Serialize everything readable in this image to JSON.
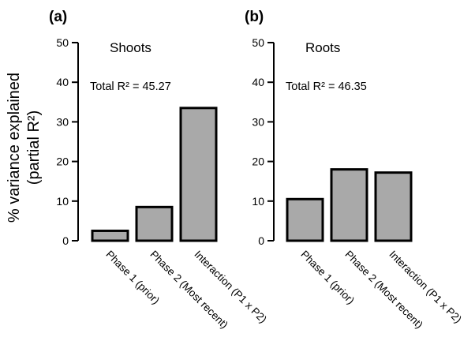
{
  "ylabel_line1": "% variance explained",
  "ylabel_line2": "(partial R²)",
  "chart_data": [
    {
      "type": "bar",
      "panel_label": "(a)",
      "title": "Shoots",
      "annotation": "Total R² = 45.27",
      "categories": [
        "Phase 1 (prior)",
        "Phase 2 (Most recent)",
        "Interaction (P1 x P2)"
      ],
      "values": [
        2.5,
        8.5,
        33.5
      ],
      "ylim": [
        0,
        50
      ],
      "yticks": [
        0,
        10,
        20,
        30,
        40,
        50
      ],
      "bar_color": "#a9a9a9",
      "grid": false
    },
    {
      "type": "bar",
      "panel_label": "(b)",
      "title": "Roots",
      "annotation": "Total R² = 46.35",
      "categories": [
        "Phase 1 (prior)",
        "Phase 2 (Most recent)",
        "Interaction (P1 x P2)"
      ],
      "values": [
        10.5,
        18,
        17.2
      ],
      "ylim": [
        0,
        50
      ],
      "yticks": [
        0,
        10,
        20,
        30,
        40,
        50
      ],
      "bar_color": "#a9a9a9",
      "grid": false
    }
  ]
}
